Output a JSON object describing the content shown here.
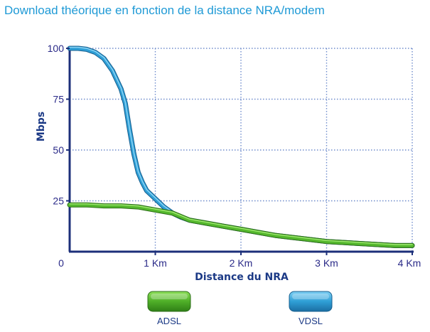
{
  "title": "Download théorique en fonction de la distance NRA/modem",
  "chart_data": {
    "type": "line",
    "xlabel": "Distance du NRA",
    "ylabel": "Mbps",
    "xlim": [
      0,
      4
    ],
    "ylim": [
      0,
      100
    ],
    "x_ticks": [
      {
        "value": 0,
        "label": "0"
      },
      {
        "value": 1,
        "label": "1 Km"
      },
      {
        "value": 2,
        "label": "2 Km"
      },
      {
        "value": 3,
        "label": "3 Km"
      },
      {
        "value": 4,
        "label": "4 Km"
      }
    ],
    "y_ticks": [
      {
        "value": 25,
        "label": "25"
      },
      {
        "value": 50,
        "label": "50"
      },
      {
        "value": 75,
        "label": "75"
      },
      {
        "value": 100,
        "label": "100"
      }
    ],
    "grid": true,
    "legend_position": "bottom",
    "series": [
      {
        "name": "ADSL",
        "color": "#55b82e",
        "x": [
          0,
          0.2,
          0.4,
          0.6,
          0.8,
          1.0,
          1.2,
          1.4,
          1.6,
          1.8,
          2.0,
          2.2,
          2.4,
          2.6,
          2.8,
          3.0,
          3.2,
          3.4,
          3.6,
          3.8,
          4.0
        ],
        "values": [
          23,
          23,
          22.5,
          22.5,
          22,
          20.5,
          19,
          15.5,
          14,
          12.5,
          11,
          9.5,
          8,
          7,
          6,
          5,
          4.5,
          4,
          3.5,
          3,
          3
        ]
      },
      {
        "name": "VDSL",
        "color": "#2f9fd6",
        "x": [
          0,
          0.1,
          0.2,
          0.3,
          0.4,
          0.5,
          0.6,
          0.65,
          0.7,
          0.75,
          0.8,
          0.85,
          0.9,
          1.0,
          1.1,
          1.2,
          1.3,
          1.4,
          1.6,
          1.8,
          2.0,
          2.2,
          2.4,
          2.6,
          2.8,
          3.0,
          3.2,
          3.4,
          3.6,
          3.8,
          4.0
        ],
        "values": [
          100,
          100,
          99.5,
          98,
          95,
          89,
          80,
          73,
          60,
          48,
          39,
          34,
          30,
          26,
          22,
          19,
          17,
          15.5,
          14,
          12.5,
          11,
          9.5,
          8,
          7,
          6,
          5,
          4.5,
          4,
          3.5,
          3,
          3
        ]
      }
    ]
  }
}
